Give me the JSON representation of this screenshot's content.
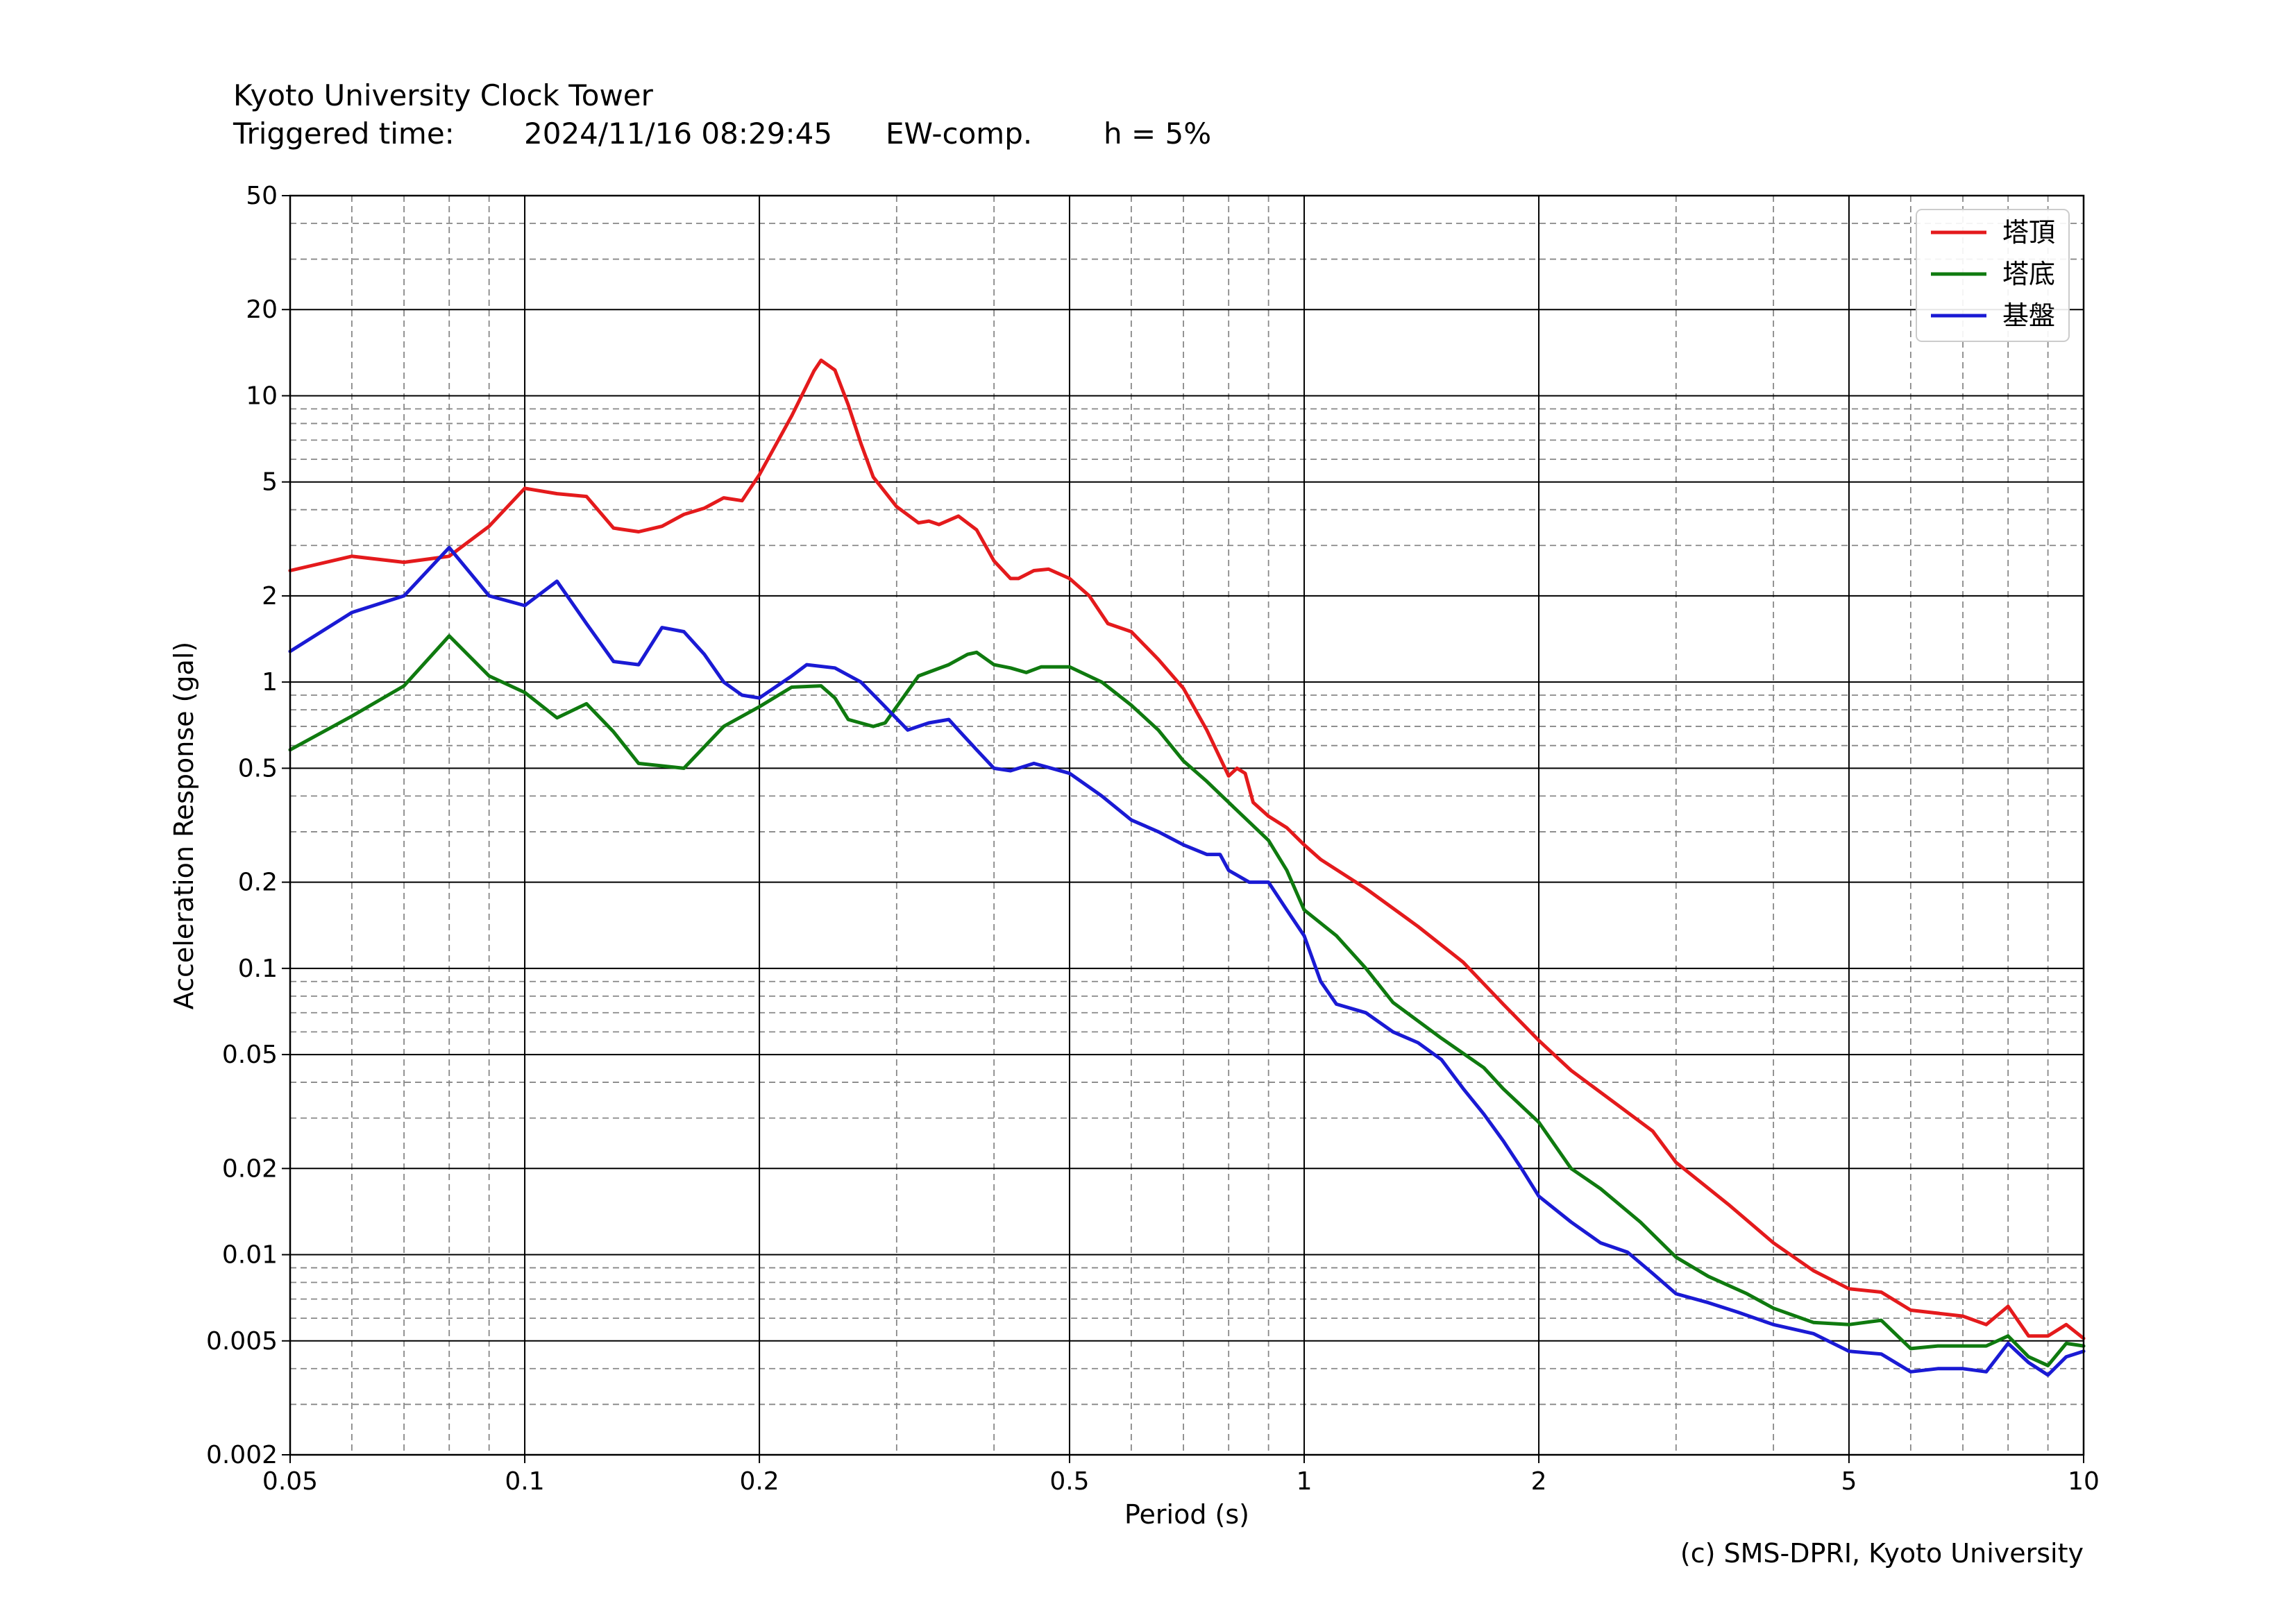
{
  "header": {
    "title": "Kyoto University Clock Tower",
    "triggered_label": "Triggered time:",
    "triggered_time": "2024/11/16 08:29:45",
    "component": "EW-comp.",
    "damping": "h = 5%"
  },
  "credit": "(c) SMS-DPRI, Kyoto University",
  "chart_data": {
    "type": "line",
    "title": "",
    "xlabel": "Period (s)",
    "ylabel": "Acceleration Response (gal)",
    "xscale": "log",
    "yscale": "log",
    "xlim": [
      0.05,
      10
    ],
    "ylim": [
      0.002,
      50
    ],
    "grid": true,
    "legend_position": "top-right",
    "x_ticks": [
      {
        "value": 0.05,
        "label": "0.05"
      },
      {
        "value": 0.1,
        "label": "0.1"
      },
      {
        "value": 0.2,
        "label": "0.2"
      },
      {
        "value": 0.5,
        "label": "0.5"
      },
      {
        "value": 1,
        "label": "1"
      },
      {
        "value": 2,
        "label": "2"
      },
      {
        "value": 5,
        "label": "5"
      },
      {
        "value": 10,
        "label": "10"
      }
    ],
    "y_ticks": [
      {
        "value": 0.002,
        "label": "0.002"
      },
      {
        "value": 0.005,
        "label": "0.005"
      },
      {
        "value": 0.01,
        "label": "0.01"
      },
      {
        "value": 0.02,
        "label": "0.02"
      },
      {
        "value": 0.05,
        "label": "0.05"
      },
      {
        "value": 0.1,
        "label": "0.1"
      },
      {
        "value": 0.2,
        "label": "0.2"
      },
      {
        "value": 0.5,
        "label": "0.5"
      },
      {
        "value": 1,
        "label": "1"
      },
      {
        "value": 2,
        "label": "2"
      },
      {
        "value": 5,
        "label": "5"
      },
      {
        "value": 10,
        "label": "10"
      },
      {
        "value": 20,
        "label": "20"
      },
      {
        "value": 50,
        "label": "50"
      }
    ],
    "series": [
      {
        "name": "塔頂",
        "color": "#e41a1c",
        "points": [
          [
            0.05,
            2.45
          ],
          [
            0.06,
            2.75
          ],
          [
            0.07,
            2.62
          ],
          [
            0.08,
            2.75
          ],
          [
            0.09,
            3.5
          ],
          [
            0.1,
            4.75
          ],
          [
            0.11,
            4.55
          ],
          [
            0.12,
            4.45
          ],
          [
            0.13,
            3.45
          ],
          [
            0.14,
            3.35
          ],
          [
            0.15,
            3.5
          ],
          [
            0.16,
            3.85
          ],
          [
            0.17,
            4.05
          ],
          [
            0.18,
            4.4
          ],
          [
            0.19,
            4.3
          ],
          [
            0.2,
            5.3
          ],
          [
            0.22,
            8.5
          ],
          [
            0.235,
            12.2
          ],
          [
            0.24,
            13.3
          ],
          [
            0.25,
            12.3
          ],
          [
            0.26,
            9.3
          ],
          [
            0.27,
            6.8
          ],
          [
            0.28,
            5.2
          ],
          [
            0.3,
            4.1
          ],
          [
            0.32,
            3.6
          ],
          [
            0.33,
            3.65
          ],
          [
            0.34,
            3.55
          ],
          [
            0.36,
            3.8
          ],
          [
            0.38,
            3.4
          ],
          [
            0.4,
            2.65
          ],
          [
            0.42,
            2.3
          ],
          [
            0.43,
            2.3
          ],
          [
            0.45,
            2.45
          ],
          [
            0.47,
            2.48
          ],
          [
            0.5,
            2.3
          ],
          [
            0.53,
            2.0
          ],
          [
            0.56,
            1.6
          ],
          [
            0.6,
            1.5
          ],
          [
            0.65,
            1.2
          ],
          [
            0.7,
            0.95
          ],
          [
            0.75,
            0.68
          ],
          [
            0.8,
            0.47
          ],
          [
            0.82,
            0.5
          ],
          [
            0.84,
            0.48
          ],
          [
            0.86,
            0.38
          ],
          [
            0.9,
            0.34
          ],
          [
            0.95,
            0.31
          ],
          [
            1.0,
            0.27
          ],
          [
            1.05,
            0.24
          ],
          [
            1.2,
            0.19
          ],
          [
            1.4,
            0.14
          ],
          [
            1.6,
            0.105
          ],
          [
            1.8,
            0.075
          ],
          [
            2.0,
            0.056
          ],
          [
            2.2,
            0.044
          ],
          [
            2.5,
            0.034
          ],
          [
            2.8,
            0.027
          ],
          [
            3.0,
            0.021
          ],
          [
            3.5,
            0.015
          ],
          [
            4.0,
            0.011
          ],
          [
            4.5,
            0.0088
          ],
          [
            5.0,
            0.0076
          ],
          [
            5.5,
            0.0074
          ],
          [
            6.0,
            0.0064
          ],
          [
            7.0,
            0.0061
          ],
          [
            7.5,
            0.0057
          ],
          [
            8.0,
            0.0066
          ],
          [
            8.5,
            0.0052
          ],
          [
            9.0,
            0.0052
          ],
          [
            9.5,
            0.0057
          ],
          [
            10.0,
            0.0051
          ]
        ]
      },
      {
        "name": "塔底",
        "color": "#0f7a0f",
        "points": [
          [
            0.05,
            0.58
          ],
          [
            0.06,
            0.76
          ],
          [
            0.07,
            0.97
          ],
          [
            0.08,
            1.45
          ],
          [
            0.09,
            1.05
          ],
          [
            0.1,
            0.92
          ],
          [
            0.11,
            0.75
          ],
          [
            0.12,
            0.84
          ],
          [
            0.13,
            0.67
          ],
          [
            0.14,
            0.52
          ],
          [
            0.16,
            0.5
          ],
          [
            0.18,
            0.7
          ],
          [
            0.2,
            0.82
          ],
          [
            0.22,
            0.96
          ],
          [
            0.24,
            0.97
          ],
          [
            0.25,
            0.88
          ],
          [
            0.26,
            0.74
          ],
          [
            0.28,
            0.7
          ],
          [
            0.29,
            0.72
          ],
          [
            0.3,
            0.82
          ],
          [
            0.32,
            1.05
          ],
          [
            0.35,
            1.15
          ],
          [
            0.37,
            1.25
          ],
          [
            0.38,
            1.27
          ],
          [
            0.4,
            1.15
          ],
          [
            0.42,
            1.12
          ],
          [
            0.44,
            1.08
          ],
          [
            0.46,
            1.13
          ],
          [
            0.5,
            1.13
          ],
          [
            0.55,
            1.0
          ],
          [
            0.6,
            0.83
          ],
          [
            0.65,
            0.68
          ],
          [
            0.7,
            0.53
          ],
          [
            0.75,
            0.45
          ],
          [
            0.8,
            0.38
          ],
          [
            0.9,
            0.28
          ],
          [
            0.95,
            0.22
          ],
          [
            1.0,
            0.16
          ],
          [
            1.1,
            0.13
          ],
          [
            1.2,
            0.1
          ],
          [
            1.3,
            0.076
          ],
          [
            1.5,
            0.057
          ],
          [
            1.7,
            0.045
          ],
          [
            1.8,
            0.038
          ],
          [
            2.0,
            0.029
          ],
          [
            2.2,
            0.02
          ],
          [
            2.4,
            0.017
          ],
          [
            2.7,
            0.013
          ],
          [
            3.0,
            0.0098
          ],
          [
            3.3,
            0.0084
          ],
          [
            3.7,
            0.0073
          ],
          [
            4.0,
            0.0065
          ],
          [
            4.5,
            0.0058
          ],
          [
            5.0,
            0.0057
          ],
          [
            5.5,
            0.0059
          ],
          [
            6.0,
            0.0047
          ],
          [
            6.5,
            0.0048
          ],
          [
            7.0,
            0.0048
          ],
          [
            7.5,
            0.0048
          ],
          [
            8.0,
            0.0052
          ],
          [
            8.5,
            0.0044
          ],
          [
            9.0,
            0.0041
          ],
          [
            9.5,
            0.0049
          ],
          [
            10.0,
            0.0048
          ]
        ]
      },
      {
        "name": "基盤",
        "color": "#1a1ad4",
        "points": [
          [
            0.05,
            1.28
          ],
          [
            0.06,
            1.75
          ],
          [
            0.07,
            2.0
          ],
          [
            0.08,
            2.95
          ],
          [
            0.09,
            2.0
          ],
          [
            0.1,
            1.85
          ],
          [
            0.11,
            2.25
          ],
          [
            0.12,
            1.6
          ],
          [
            0.13,
            1.18
          ],
          [
            0.14,
            1.15
          ],
          [
            0.15,
            1.55
          ],
          [
            0.16,
            1.5
          ],
          [
            0.17,
            1.25
          ],
          [
            0.18,
            1.0
          ],
          [
            0.19,
            0.9
          ],
          [
            0.2,
            0.88
          ],
          [
            0.22,
            1.05
          ],
          [
            0.23,
            1.15
          ],
          [
            0.25,
            1.12
          ],
          [
            0.27,
            1.0
          ],
          [
            0.29,
            0.82
          ],
          [
            0.31,
            0.68
          ],
          [
            0.33,
            0.72
          ],
          [
            0.35,
            0.74
          ],
          [
            0.36,
            0.68
          ],
          [
            0.38,
            0.58
          ],
          [
            0.4,
            0.5
          ],
          [
            0.42,
            0.49
          ],
          [
            0.45,
            0.52
          ],
          [
            0.5,
            0.48
          ],
          [
            0.55,
            0.4
          ],
          [
            0.6,
            0.33
          ],
          [
            0.65,
            0.3
          ],
          [
            0.7,
            0.27
          ],
          [
            0.75,
            0.25
          ],
          [
            0.78,
            0.25
          ],
          [
            0.8,
            0.22
          ],
          [
            0.85,
            0.2
          ],
          [
            0.9,
            0.2
          ],
          [
            0.95,
            0.16
          ],
          [
            1.0,
            0.13
          ],
          [
            1.05,
            0.09
          ],
          [
            1.1,
            0.075
          ],
          [
            1.2,
            0.07
          ],
          [
            1.3,
            0.06
          ],
          [
            1.4,
            0.055
          ],
          [
            1.5,
            0.048
          ],
          [
            1.6,
            0.038
          ],
          [
            1.7,
            0.031
          ],
          [
            1.8,
            0.025
          ],
          [
            1.9,
            0.02
          ],
          [
            2.0,
            0.016
          ],
          [
            2.2,
            0.013
          ],
          [
            2.4,
            0.011
          ],
          [
            2.6,
            0.0102
          ],
          [
            2.8,
            0.0086
          ],
          [
            3.0,
            0.0073
          ],
          [
            3.3,
            0.0068
          ],
          [
            3.6,
            0.0063
          ],
          [
            4.0,
            0.0057
          ],
          [
            4.5,
            0.0053
          ],
          [
            5.0,
            0.0046
          ],
          [
            5.5,
            0.0045
          ],
          [
            6.0,
            0.0039
          ],
          [
            6.5,
            0.004
          ],
          [
            7.0,
            0.004
          ],
          [
            7.5,
            0.0039
          ],
          [
            8.0,
            0.0049
          ],
          [
            8.5,
            0.0042
          ],
          [
            9.0,
            0.0038
          ],
          [
            9.5,
            0.0044
          ],
          [
            10.0,
            0.0046
          ]
        ]
      }
    ]
  }
}
